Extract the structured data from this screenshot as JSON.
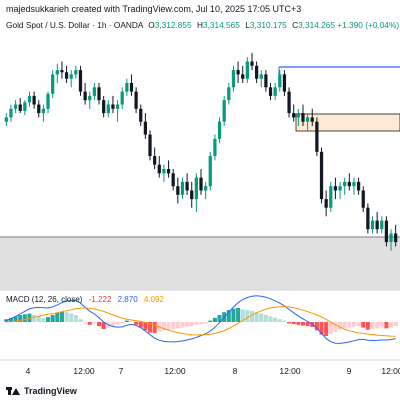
{
  "header": {
    "credit": "majedsukkarieh created with TradingView.com, Jul 10, 2025 17:05 UTC+3",
    "symbol": "Gold Spot / U.S. Dollar · 1h · OANDA",
    "open_label": "O",
    "open": "3,312.855",
    "high_label": "H",
    "high": "3,314.565",
    "low_label": "L",
    "low": "3,310.175",
    "close_label": "C",
    "close": "3,314.265",
    "change": "+1.390 (+0.04%)"
  },
  "macd": {
    "label": "MACD (12, 26, close)",
    "histogram": "-1.222",
    "macd_value": "2.870",
    "signal_value": "4.092"
  },
  "footer": {
    "brand": "TradingView"
  },
  "colors": {
    "up": "#089981",
    "down": "#131722",
    "blue_line": "#2962ff",
    "zone_fill": "#fdebd3",
    "zone_border": "#131722",
    "gray_zone": "#e0e0e0",
    "macd_line": "#2962ff",
    "signal_line": "#ff9800",
    "hist_pos_strong": "#26a69a",
    "hist_pos_weak": "#b2dfdb",
    "hist_neg_strong": "#ff5252",
    "hist_neg_weak": "#ffcdd2"
  },
  "chart_data": {
    "type": "candlestick",
    "title": "Gold Spot / U.S. Dollar · 1h · OANDA",
    "x_tick_labels": [
      "4",
      "12:00",
      "7",
      "12:00",
      "8",
      "12:00",
      "9",
      "12:00"
    ],
    "ohlc_relative": [
      [
        0.62,
        0.66,
        0.6,
        0.64
      ],
      [
        0.64,
        0.7,
        0.62,
        0.68
      ],
      [
        0.68,
        0.72,
        0.66,
        0.7
      ],
      [
        0.7,
        0.73,
        0.66,
        0.67
      ],
      [
        0.67,
        0.72,
        0.65,
        0.71
      ],
      [
        0.71,
        0.76,
        0.69,
        0.74
      ],
      [
        0.74,
        0.76,
        0.68,
        0.7
      ],
      [
        0.7,
        0.72,
        0.64,
        0.66
      ],
      [
        0.66,
        0.7,
        0.62,
        0.68
      ],
      [
        0.68,
        0.76,
        0.66,
        0.75
      ],
      [
        0.75,
        0.86,
        0.73,
        0.84
      ],
      [
        0.84,
        0.89,
        0.8,
        0.86
      ],
      [
        0.86,
        0.9,
        0.82,
        0.85
      ],
      [
        0.85,
        0.88,
        0.8,
        0.82
      ],
      [
        0.82,
        0.86,
        0.78,
        0.84
      ],
      [
        0.84,
        0.88,
        0.82,
        0.86
      ],
      [
        0.86,
        0.88,
        0.74,
        0.76
      ],
      [
        0.76,
        0.8,
        0.7,
        0.72
      ],
      [
        0.72,
        0.76,
        0.68,
        0.74
      ],
      [
        0.74,
        0.8,
        0.72,
        0.78
      ],
      [
        0.78,
        0.8,
        0.7,
        0.72
      ],
      [
        0.72,
        0.74,
        0.64,
        0.66
      ],
      [
        0.66,
        0.72,
        0.64,
        0.7
      ],
      [
        0.7,
        0.74,
        0.66,
        0.68
      ],
      [
        0.68,
        0.72,
        0.62,
        0.7
      ],
      [
        0.7,
        0.78,
        0.68,
        0.76
      ],
      [
        0.76,
        0.82,
        0.74,
        0.8
      ],
      [
        0.8,
        0.84,
        0.74,
        0.76
      ],
      [
        0.76,
        0.78,
        0.66,
        0.68
      ],
      [
        0.68,
        0.7,
        0.6,
        0.62
      ],
      [
        0.62,
        0.66,
        0.54,
        0.56
      ],
      [
        0.56,
        0.58,
        0.44,
        0.46
      ],
      [
        0.46,
        0.5,
        0.4,
        0.42
      ],
      [
        0.42,
        0.46,
        0.36,
        0.38
      ],
      [
        0.38,
        0.42,
        0.34,
        0.4
      ],
      [
        0.4,
        0.44,
        0.36,
        0.38
      ],
      [
        0.38,
        0.4,
        0.3,
        0.32
      ],
      [
        0.32,
        0.36,
        0.24,
        0.28
      ],
      [
        0.28,
        0.36,
        0.26,
        0.34
      ],
      [
        0.34,
        0.38,
        0.28,
        0.3
      ],
      [
        0.3,
        0.34,
        0.22,
        0.26
      ],
      [
        0.26,
        0.38,
        0.2,
        0.36
      ],
      [
        0.36,
        0.4,
        0.28,
        0.3
      ],
      [
        0.3,
        0.34,
        0.26,
        0.32
      ],
      [
        0.32,
        0.48,
        0.3,
        0.46
      ],
      [
        0.46,
        0.56,
        0.44,
        0.54
      ],
      [
        0.54,
        0.64,
        0.52,
        0.62
      ],
      [
        0.62,
        0.74,
        0.6,
        0.72
      ],
      [
        0.72,
        0.8,
        0.7,
        0.78
      ],
      [
        0.78,
        0.88,
        0.76,
        0.86
      ],
      [
        0.86,
        0.9,
        0.8,
        0.84
      ],
      [
        0.84,
        0.88,
        0.8,
        0.82
      ],
      [
        0.82,
        0.92,
        0.8,
        0.9
      ],
      [
        0.9,
        0.94,
        0.86,
        0.88
      ],
      [
        0.88,
        0.9,
        0.8,
        0.82
      ],
      [
        0.82,
        0.86,
        0.78,
        0.84
      ],
      [
        0.84,
        0.86,
        0.76,
        0.78
      ],
      [
        0.78,
        0.8,
        0.72,
        0.74
      ],
      [
        0.74,
        0.8,
        0.72,
        0.78
      ],
      [
        0.78,
        0.86,
        0.76,
        0.84
      ],
      [
        0.84,
        0.86,
        0.74,
        0.76
      ],
      [
        0.76,
        0.78,
        0.64,
        0.66
      ],
      [
        0.66,
        0.7,
        0.62,
        0.64
      ],
      [
        0.64,
        0.68,
        0.6,
        0.66
      ],
      [
        0.66,
        0.7,
        0.6,
        0.62
      ],
      [
        0.62,
        0.66,
        0.58,
        0.64
      ],
      [
        0.64,
        0.68,
        0.6,
        0.62
      ],
      [
        0.62,
        0.64,
        0.46,
        0.48
      ],
      [
        0.48,
        0.5,
        0.24,
        0.26
      ],
      [
        0.26,
        0.3,
        0.18,
        0.22
      ],
      [
        0.22,
        0.34,
        0.2,
        0.32
      ],
      [
        0.32,
        0.36,
        0.26,
        0.3
      ],
      [
        0.3,
        0.34,
        0.26,
        0.32
      ],
      [
        0.32,
        0.36,
        0.28,
        0.34
      ],
      [
        0.34,
        0.38,
        0.3,
        0.32
      ],
      [
        0.32,
        0.36,
        0.28,
        0.34
      ],
      [
        0.34,
        0.36,
        0.28,
        0.3
      ],
      [
        0.3,
        0.32,
        0.2,
        0.22
      ],
      [
        0.22,
        0.24,
        0.1,
        0.12
      ],
      [
        0.12,
        0.18,
        0.1,
        0.16
      ],
      [
        0.16,
        0.2,
        0.1,
        0.12
      ],
      [
        0.12,
        0.18,
        0.1,
        0.16
      ],
      [
        0.16,
        0.18,
        0.04,
        0.06
      ],
      [
        0.06,
        0.12,
        0.02,
        0.1
      ],
      [
        0.1,
        0.14,
        0.04,
        0.06
      ]
    ],
    "macd_histogram_relative": [
      0.2,
      0.3,
      0.4,
      0.5,
      0.55,
      0.6,
      0.5,
      0.4,
      0.3,
      0.35,
      0.5,
      0.65,
      0.75,
      0.7,
      0.6,
      0.5,
      0.2,
      -0.1,
      -0.2,
      -0.1,
      -0.3,
      -0.5,
      -0.4,
      -0.3,
      -0.2,
      -0.1,
      0.1,
      0.05,
      -0.2,
      -0.4,
      -0.6,
      -0.75,
      -0.8,
      -0.7,
      -0.6,
      -0.55,
      -0.5,
      -0.45,
      -0.4,
      -0.35,
      -0.3,
      -0.2,
      -0.15,
      -0.1,
      0.1,
      0.3,
      0.5,
      0.7,
      0.85,
      0.95,
      1.0,
      0.9,
      0.85,
      0.8,
      0.7,
      0.6,
      0.5,
      0.4,
      0.3,
      0.2,
      0.1,
      -0.1,
      -0.15,
      -0.2,
      -0.25,
      -0.3,
      -0.35,
      -0.6,
      -0.9,
      -1.0,
      -0.85,
      -0.7,
      -0.55,
      -0.45,
      -0.4,
      -0.35,
      -0.3,
      -0.4,
      -0.55,
      -0.5,
      -0.45,
      -0.4,
      -0.45,
      -0.4,
      -0.3
    ]
  }
}
